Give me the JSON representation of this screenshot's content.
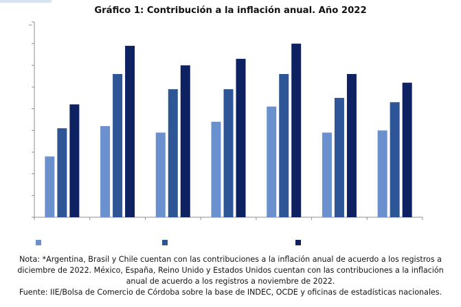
{
  "title": "Gráfico 1: Contribución a la inflación anual. Año 2022",
  "axis_stub": "~",
  "note": "Nota: *Argentina, Brasil y Chile cuentan con las contribuciones a la inflación anual de acuerdo a los registros a diciembre de 2022. México, España, Reino Unido y Estados Unidos cuentan con las contribuciones a la inflación anual de acuerdo a los registros a noviembre de 2022.",
  "source": "Fuente: IIE/Bolsa de Comercio de Córdoba sobre la base de INDEC, OCDE y oficinas de estadísticas nacionales.",
  "colors": {
    "series1": "#6a90cd",
    "series2": "#2e5596",
    "series3": "#0e2160"
  },
  "chart_data": {
    "type": "bar",
    "title": "Gráfico 1: Contribución a la inflación anual. Año 2022",
    "categories": [
      "",
      "",
      "",
      "",
      "",
      "",
      ""
    ],
    "series": [
      {
        "name": "",
        "values": [
          2.8,
          4.2,
          3.9,
          4.4,
          5.1,
          3.9,
          4.0
        ]
      },
      {
        "name": "",
        "values": [
          4.1,
          6.6,
          5.9,
          5.9,
          6.6,
          5.5,
          5.3
        ]
      },
      {
        "name": "",
        "values": [
          5.2,
          7.9,
          7.0,
          7.3,
          8.0,
          6.6,
          6.2
        ]
      }
    ],
    "ylim": [
      0,
      9
    ],
    "yticks": 9,
    "grid": false,
    "legend_position": "bottom",
    "xlabel": "",
    "ylabel": ""
  }
}
